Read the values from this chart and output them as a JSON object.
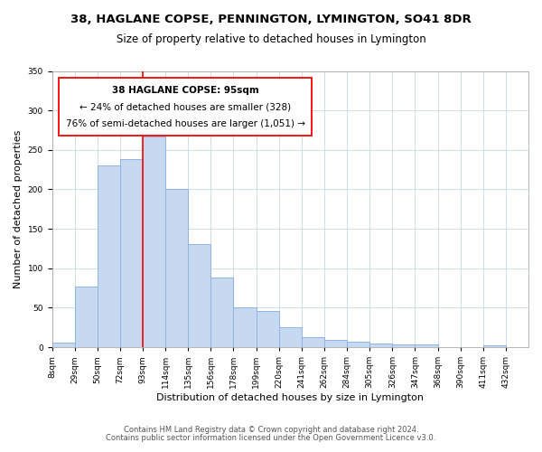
{
  "title": "38, HAGLANE COPSE, PENNINGTON, LYMINGTON, SO41 8DR",
  "subtitle": "Size of property relative to detached houses in Lymington",
  "xlabel": "Distribution of detached houses by size in Lymington",
  "ylabel": "Number of detached properties",
  "bar_labels": [
    "8sqm",
    "29sqm",
    "50sqm",
    "72sqm",
    "93sqm",
    "114sqm",
    "135sqm",
    "156sqm",
    "178sqm",
    "199sqm",
    "220sqm",
    "241sqm",
    "262sqm",
    "284sqm",
    "305sqm",
    "326sqm",
    "347sqm",
    "368sqm",
    "390sqm",
    "411sqm",
    "432sqm"
  ],
  "bar_values": [
    6,
    77,
    230,
    238,
    267,
    201,
    131,
    88,
    50,
    46,
    25,
    13,
    9,
    7,
    5,
    3,
    3,
    0,
    0,
    2
  ],
  "bar_color": "#c6d9f0",
  "bar_edge_color": "#8db4e2",
  "vline_color": "red",
  "vline_x": 4,
  "annotation_line1": "38 HAGLANE COPSE: 95sqm",
  "annotation_line2": "← 24% of detached houses are smaller (328)",
  "annotation_line3": "76% of semi-detached houses are larger (1,051) →",
  "annotation_box_color": "white",
  "annotation_box_edgecolor": "red",
  "ylim": [
    0,
    350
  ],
  "yticks": [
    0,
    50,
    100,
    150,
    200,
    250,
    300,
    350
  ],
  "footer1": "Contains HM Land Registry data © Crown copyright and database right 2024.",
  "footer2": "Contains public sector information licensed under the Open Government Licence v3.0.",
  "title_fontsize": 9.5,
  "subtitle_fontsize": 8.5,
  "xlabel_fontsize": 8,
  "ylabel_fontsize": 8,
  "tick_fontsize": 6.5,
  "annotation_fontsize": 7.5,
  "footer_fontsize": 6
}
